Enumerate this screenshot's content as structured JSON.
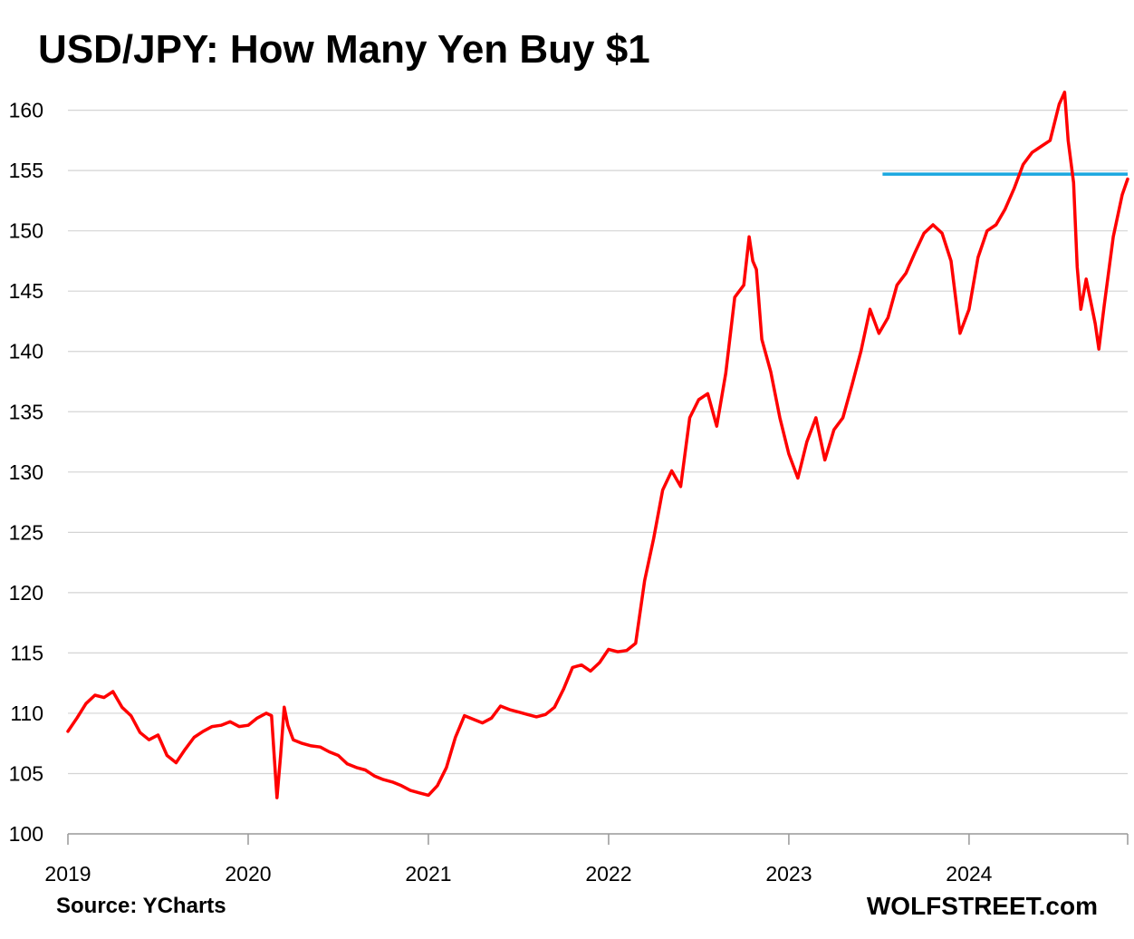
{
  "chart_data": {
    "type": "line",
    "title": "USD/JPY: How Many Yen Buy $1",
    "source": "Source: YCharts",
    "brand": "WOLFSTREET.com",
    "xlabel": "",
    "ylabel": "",
    "xlim": [
      2019.0,
      2024.88
    ],
    "ylim": [
      100,
      162
    ],
    "x_ticks": [
      2019,
      2020,
      2021,
      2022,
      2023,
      2024
    ],
    "x_tick_labels": [
      "2019",
      "2020",
      "2021",
      "2022",
      "2023",
      "2024"
    ],
    "y_ticks": [
      100,
      105,
      110,
      115,
      120,
      125,
      130,
      135,
      140,
      145,
      150,
      155,
      160
    ],
    "y_tick_labels": [
      "100",
      "105",
      "110",
      "115",
      "120",
      "125",
      "130",
      "135",
      "140",
      "145",
      "150",
      "155",
      "160"
    ],
    "grid": "horizontal",
    "series": [
      {
        "name": "USD/JPY",
        "color": "#ff0000",
        "x": [
          2019.0,
          2019.05,
          2019.1,
          2019.15,
          2019.2,
          2019.25,
          2019.3,
          2019.35,
          2019.4,
          2019.45,
          2019.5,
          2019.55,
          2019.6,
          2019.65,
          2019.7,
          2019.75,
          2019.8,
          2019.85,
          2019.9,
          2019.95,
          2020.0,
          2020.05,
          2020.1,
          2020.13,
          2020.16,
          2020.18,
          2020.2,
          2020.22,
          2020.25,
          2020.3,
          2020.35,
          2020.4,
          2020.45,
          2020.5,
          2020.55,
          2020.6,
          2020.65,
          2020.7,
          2020.75,
          2020.8,
          2020.85,
          2020.9,
          2020.95,
          2021.0,
          2021.05,
          2021.1,
          2021.15,
          2021.2,
          2021.25,
          2021.3,
          2021.35,
          2021.4,
          2021.45,
          2021.5,
          2021.55,
          2021.6,
          2021.65,
          2021.7,
          2021.75,
          2021.8,
          2021.85,
          2021.9,
          2021.95,
          2022.0,
          2022.05,
          2022.1,
          2022.15,
          2022.2,
          2022.25,
          2022.3,
          2022.35,
          2022.4,
          2022.45,
          2022.5,
          2022.55,
          2022.6,
          2022.65,
          2022.7,
          2022.75,
          2022.78,
          2022.8,
          2022.82,
          2022.85,
          2022.9,
          2022.95,
          2023.0,
          2023.05,
          2023.1,
          2023.15,
          2023.2,
          2023.25,
          2023.3,
          2023.35,
          2023.4,
          2023.45,
          2023.5,
          2023.55,
          2023.6,
          2023.65,
          2023.7,
          2023.75,
          2023.8,
          2023.85,
          2023.9,
          2023.95,
          2024.0,
          2024.05,
          2024.1,
          2024.15,
          2024.2,
          2024.25,
          2024.3,
          2024.35,
          2024.4,
          2024.45,
          2024.5,
          2024.53,
          2024.55,
          2024.58,
          2024.6,
          2024.62,
          2024.65,
          2024.7,
          2024.72,
          2024.75,
          2024.8,
          2024.85,
          2024.88
        ],
        "values": [
          108.5,
          109.6,
          110.8,
          111.5,
          111.3,
          111.8,
          110.5,
          109.8,
          108.4,
          107.8,
          108.2,
          106.5,
          105.9,
          107.0,
          108.0,
          108.5,
          108.9,
          109.0,
          109.3,
          108.9,
          109.0,
          109.6,
          110.0,
          109.8,
          103.0,
          106.5,
          110.5,
          109.0,
          107.8,
          107.5,
          107.3,
          107.2,
          106.8,
          106.5,
          105.8,
          105.5,
          105.3,
          104.8,
          104.5,
          104.3,
          104.0,
          103.6,
          103.4,
          103.2,
          104.0,
          105.5,
          108.0,
          109.8,
          109.5,
          109.2,
          109.6,
          110.6,
          110.3,
          110.1,
          109.9,
          109.7,
          109.9,
          110.5,
          112.0,
          113.8,
          114.0,
          113.5,
          114.2,
          115.3,
          115.1,
          115.2,
          115.8,
          121.0,
          124.5,
          128.5,
          130.1,
          128.8,
          134.5,
          136.0,
          136.5,
          133.8,
          138.2,
          144.5,
          145.5,
          149.5,
          147.5,
          146.8,
          141.0,
          138.3,
          134.5,
          131.5,
          129.5,
          132.5,
          134.5,
          131.0,
          133.5,
          134.5,
          137.2,
          140.0,
          143.5,
          141.5,
          142.8,
          145.5,
          146.5,
          148.2,
          149.8,
          150.5,
          149.8,
          147.5,
          141.5,
          143.5,
          147.8,
          150.0,
          150.5,
          151.8,
          153.5,
          155.5,
          156.5,
          157.0,
          157.5,
          160.5,
          161.5,
          157.5,
          154.0,
          147.0,
          143.5,
          146.0,
          142.3,
          140.2,
          143.8,
          149.5,
          153.0,
          154.3
        ]
      }
    ],
    "reference_line": {
      "y": 154.7,
      "x_start": 2023.52,
      "x_end": 2024.88,
      "color": "#1aa7df"
    }
  }
}
